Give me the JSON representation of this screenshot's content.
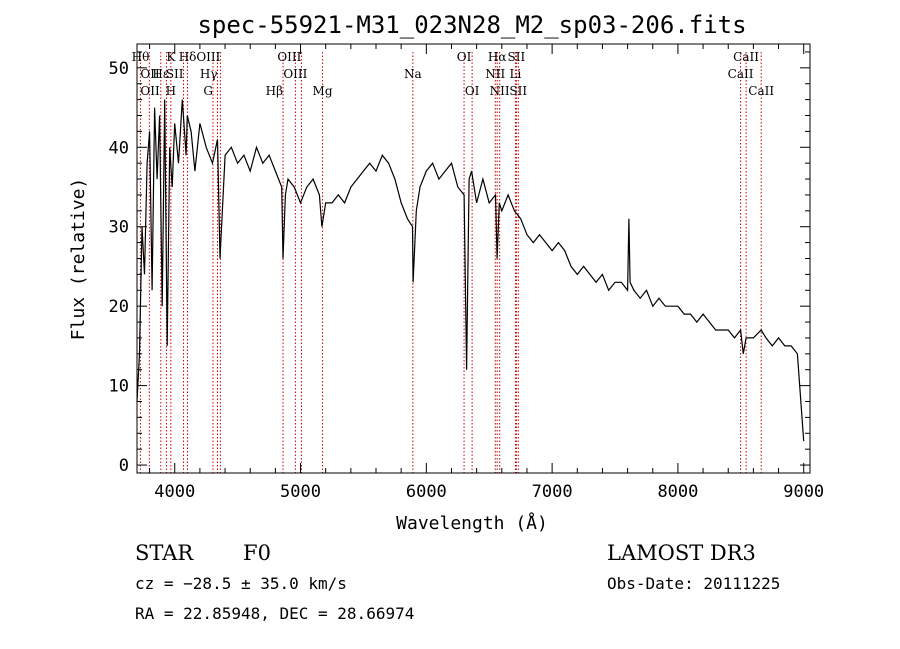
{
  "chart_data": {
    "type": "line",
    "title": "spec-55921-M31_023N28_M2_sp03-206.fits",
    "xlabel": "Wavelength (Å)",
    "ylabel": "Flux (relative)",
    "xlim": [
      3700,
      9050
    ],
    "ylim": [
      -1,
      53
    ],
    "xticks": [
      4000,
      5000,
      6000,
      7000,
      8000,
      9000
    ],
    "yticks": [
      0,
      10,
      20,
      30,
      40,
      50
    ],
    "series": [
      {
        "name": "flux",
        "x": [
          3700,
          3720,
          3740,
          3760,
          3780,
          3800,
          3820,
          3840,
          3860,
          3880,
          3900,
          3920,
          3940,
          3960,
          3980,
          4000,
          4030,
          4060,
          4090,
          4100,
          4130,
          4160,
          4200,
          4250,
          4300,
          4340,
          4360,
          4400,
          4450,
          4500,
          4550,
          4600,
          4650,
          4700,
          4750,
          4800,
          4850,
          4861,
          4880,
          4900,
          4950,
          5000,
          5050,
          5100,
          5150,
          5170,
          5200,
          5250,
          5300,
          5350,
          5400,
          5450,
          5500,
          5550,
          5600,
          5650,
          5700,
          5750,
          5800,
          5850,
          5890,
          5895,
          5920,
          5950,
          6000,
          6050,
          6100,
          6150,
          6200,
          6250,
          6300,
          6320,
          6340,
          6360,
          6400,
          6450,
          6500,
          6550,
          6563,
          6580,
          6600,
          6650,
          6700,
          6750,
          6800,
          6850,
          6900,
          6950,
          7000,
          7050,
          7100,
          7150,
          7200,
          7250,
          7300,
          7350,
          7400,
          7450,
          7500,
          7550,
          7600,
          7610,
          7620,
          7650,
          7700,
          7750,
          7800,
          7850,
          7900,
          7950,
          8000,
          8050,
          8100,
          8150,
          8200,
          8250,
          8300,
          8350,
          8400,
          8450,
          8498,
          8520,
          8542,
          8560,
          8600,
          8662,
          8700,
          8750,
          8800,
          8850,
          8900,
          8950,
          9000
        ],
        "values": [
          8,
          14,
          30,
          24,
          38,
          42,
          22,
          45,
          36,
          44,
          20,
          46,
          15,
          40,
          35,
          43,
          38,
          46,
          39,
          44,
          42,
          37,
          43,
          40,
          38,
          41,
          26,
          39,
          40,
          38,
          39,
          37,
          40,
          38,
          39,
          37,
          35,
          26,
          34,
          36,
          35,
          33,
          35,
          36,
          34,
          30,
          33,
          33,
          34,
          33,
          35,
          36,
          37,
          38,
          37,
          39,
          38,
          36,
          33,
          31,
          30,
          23,
          32,
          35,
          37,
          38,
          36,
          37,
          38,
          35,
          34,
          12,
          36,
          37,
          33,
          36,
          33,
          34,
          26,
          33,
          32,
          34,
          32,
          31,
          29,
          28,
          29,
          28,
          27,
          28,
          27,
          25,
          24,
          25,
          24,
          23,
          24,
          22,
          23,
          23,
          22,
          31,
          23,
          22,
          21,
          22,
          20,
          21,
          20,
          20,
          20,
          19,
          19,
          18,
          19,
          18,
          17,
          17,
          17,
          16,
          17,
          14,
          16,
          16,
          16,
          17,
          16,
          15,
          16,
          15,
          15,
          14,
          3
        ]
      }
    ],
    "lines": [
      {
        "label": "Hθ",
        "x": 3798,
        "row": 0,
        "align": "end"
      },
      {
        "label": "K",
        "x": 3934,
        "row": 0,
        "align": "start"
      },
      {
        "label": "Hδ",
        "x": 4102,
        "row": 0,
        "align": "middle"
      },
      {
        "label": "OIII",
        "x": 4363,
        "row": 0,
        "align": "end"
      },
      {
        "label": "OIII",
        "x": 5007,
        "row": 0,
        "align": "end"
      },
      {
        "label": "OI",
        "x": 6300,
        "row": 0,
        "align": "middle"
      },
      {
        "label": "Hα",
        "x": 6563,
        "row": 0,
        "align": "middle"
      },
      {
        "label": "SII",
        "x": 6716,
        "row": 0,
        "align": "middle"
      },
      {
        "label": "CaII",
        "x": 8542,
        "row": 0,
        "align": "middle"
      },
      {
        "label": "OII",
        "x": 3727,
        "row": 1,
        "align": "start"
      },
      {
        "label": "Hε",
        "x": 3889,
        "row": 1,
        "align": "middle"
      },
      {
        "label": "SII",
        "x": 4070,
        "row": 1,
        "align": "end"
      },
      {
        "label": "Hγ",
        "x": 4340,
        "row": 1,
        "align": "end"
      },
      {
        "label": "OIII",
        "x": 4959,
        "row": 1,
        "align": "middle"
      },
      {
        "label": "Na",
        "x": 5893,
        "row": 1,
        "align": "middle"
      },
      {
        "label": "NII",
        "x": 6548,
        "row": 1,
        "align": "middle"
      },
      {
        "label": "Li",
        "x": 6708,
        "row": 1,
        "align": "middle"
      },
      {
        "label": "CaII",
        "x": 8498,
        "row": 1,
        "align": "middle"
      },
      {
        "label": "OII",
        "x": 3727,
        "row": 2,
        "align": "start"
      },
      {
        "label": "H",
        "x": 3969,
        "row": 2,
        "align": "middle"
      },
      {
        "label": "G",
        "x": 4304,
        "row": 2,
        "align": "end"
      },
      {
        "label": "Hβ",
        "x": 4861,
        "row": 2,
        "align": "end"
      },
      {
        "label": "Mg",
        "x": 5175,
        "row": 2,
        "align": "middle"
      },
      {
        "label": "OI",
        "x": 6364,
        "row": 2,
        "align": "middle"
      },
      {
        "label": "NII",
        "x": 6583,
        "row": 2,
        "align": "middle"
      },
      {
        "label": "SII",
        "x": 6731,
        "row": 2,
        "align": "middle"
      },
      {
        "label": "CaII",
        "x": 8662,
        "row": 2,
        "align": "middle"
      }
    ],
    "line_color": "#cc0000",
    "data_color": "#000000"
  },
  "footer": {
    "object_class": "STAR",
    "subclass": "F0",
    "cz": "cz = −28.5 ± 35.0 km/s",
    "coords": "RA =  22.85948, DEC =  28.66974",
    "survey": "LAMOST DR3",
    "obs_date": "Obs-Date: 20111225"
  }
}
